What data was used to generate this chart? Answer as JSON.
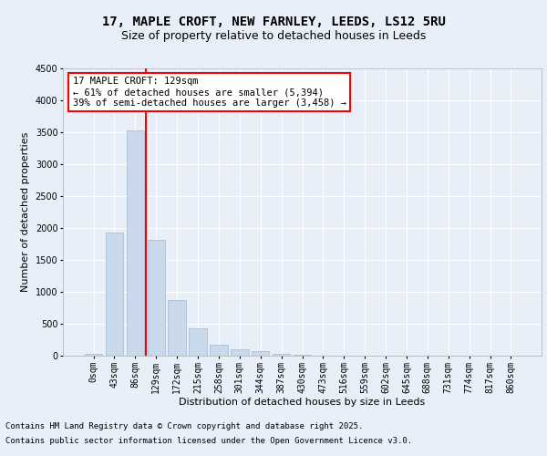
{
  "title_line1": "17, MAPLE CROFT, NEW FARNLEY, LEEDS, LS12 5RU",
  "title_line2": "Size of property relative to detached houses in Leeds",
  "xlabel": "Distribution of detached houses by size in Leeds",
  "ylabel": "Number of detached properties",
  "categories": [
    "0sqm",
    "43sqm",
    "86sqm",
    "129sqm",
    "172sqm",
    "215sqm",
    "258sqm",
    "301sqm",
    "344sqm",
    "387sqm",
    "430sqm",
    "473sqm",
    "516sqm",
    "559sqm",
    "602sqm",
    "645sqm",
    "688sqm",
    "731sqm",
    "774sqm",
    "817sqm",
    "860sqm"
  ],
  "values": [
    25,
    1930,
    3530,
    1820,
    870,
    430,
    175,
    105,
    70,
    35,
    15,
    5,
    3,
    2,
    1,
    1,
    0,
    0,
    0,
    0,
    0
  ],
  "bar_color": "#c9d9ec",
  "bar_edge_color": "#a0b8d4",
  "vline_x_index": 3,
  "vline_color": "red",
  "annotation_text": "17 MAPLE CROFT: 129sqm\n← 61% of detached houses are smaller (5,394)\n39% of semi-detached houses are larger (3,458) →",
  "annotation_box_color": "white",
  "annotation_box_edge_color": "red",
  "ylim": [
    0,
    4500
  ],
  "yticks": [
    0,
    500,
    1000,
    1500,
    2000,
    2500,
    3000,
    3500,
    4000,
    4500
  ],
  "background_color": "#e8eff8",
  "plot_background": "#e8eff8",
  "grid_color": "white",
  "footer_line1": "Contains HM Land Registry data © Crown copyright and database right 2025.",
  "footer_line2": "Contains public sector information licensed under the Open Government Licence v3.0.",
  "title_fontsize": 10,
  "subtitle_fontsize": 9,
  "axis_label_fontsize": 8,
  "tick_fontsize": 7,
  "annotation_fontsize": 7.5,
  "footer_fontsize": 6.5
}
